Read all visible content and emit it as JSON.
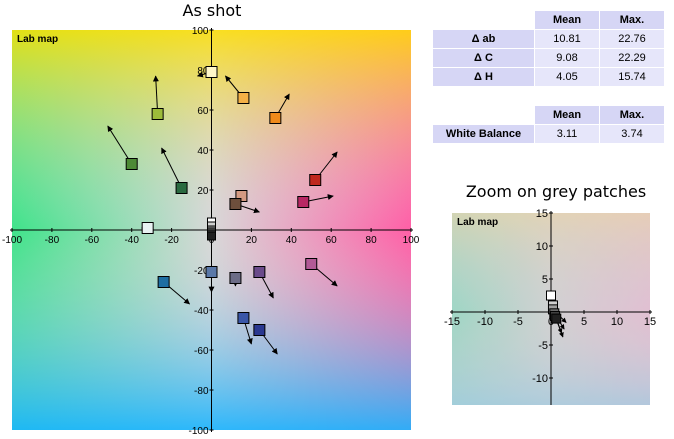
{
  "title": "As shot",
  "zoom_title": "Zoom on grey patches",
  "stats1": {
    "headers": [
      "",
      "Mean",
      "Max."
    ],
    "rows": [
      {
        "label": "Δ ab",
        "mean": "10.81",
        "max": "22.76"
      },
      {
        "label": "Δ C",
        "mean": "9.08",
        "max": "22.29"
      },
      {
        "label": "Δ H",
        "mean": "4.05",
        "max": "15.74"
      }
    ]
  },
  "stats2": {
    "headers": [
      "",
      "Mean",
      "Max."
    ],
    "rows": [
      {
        "label": "White Balance",
        "mean": "3.11",
        "max": "3.74"
      }
    ]
  },
  "chart_data": [
    {
      "type": "scatter",
      "title": "As shot",
      "inner_label": "Lab map",
      "xlim": [
        -100,
        100
      ],
      "ylim": [
        -100,
        100
      ],
      "ticks": [
        -100,
        -80,
        -60,
        -40,
        -20,
        0,
        20,
        40,
        60,
        80,
        100
      ],
      "grid": false,
      "points": [
        {
          "a": 0,
          "b": 79,
          "ta": -7,
          "tb": 77,
          "color": "#fff7c8"
        },
        {
          "a": 16,
          "b": 66,
          "ta": 7,
          "tb": 77,
          "color": "#f3b046"
        },
        {
          "a": 32,
          "b": 56,
          "ta": 39,
          "tb": 68,
          "color": "#ef8a1a"
        },
        {
          "a": -27,
          "b": 58,
          "ta": -28,
          "tb": 77,
          "color": "#9cbc3a"
        },
        {
          "a": -40,
          "b": 33,
          "ta": -52,
          "tb": 52,
          "color": "#4d8a36"
        },
        {
          "a": -15,
          "b": 21,
          "ta": -25,
          "tb": 41,
          "color": "#2a6a40"
        },
        {
          "a": 52,
          "b": 25,
          "ta": 63,
          "tb": 39,
          "color": "#c0281e"
        },
        {
          "a": 46,
          "b": 14,
          "ta": 61,
          "tb": 17,
          "color": "#b82864"
        },
        {
          "a": 15,
          "b": 17,
          "ta": 12,
          "tb": 14,
          "color": "#d49a82"
        },
        {
          "a": 12,
          "b": 13,
          "ta": 24,
          "tb": 9,
          "color": "#6e4f3c"
        },
        {
          "a": -32,
          "b": 1,
          "ta": -35,
          "tb": 1,
          "color": "#e8f2f2"
        },
        {
          "a": 50,
          "b": -17,
          "ta": 63,
          "tb": -28,
          "color": "#b25a96"
        },
        {
          "a": 0,
          "b": -21,
          "ta": 0,
          "tb": -31,
          "color": "#5a78a8"
        },
        {
          "a": 12,
          "b": -24,
          "ta": 12,
          "tb": -28,
          "color": "#6c6c86"
        },
        {
          "a": 24,
          "b": -21,
          "ta": 31,
          "tb": -34,
          "color": "#6a4a8a"
        },
        {
          "a": -24,
          "b": -26,
          "ta": -11,
          "tb": -37,
          "color": "#1e6ea2"
        },
        {
          "a": 16,
          "b": -44,
          "ta": 20,
          "tb": -57,
          "color": "#3a56a8"
        },
        {
          "a": 24,
          "b": -50,
          "ta": 33,
          "tb": -62,
          "color": "#2a3890"
        }
      ],
      "grey_points": [
        {
          "a": 0,
          "b": 4,
          "color": "#ffffff"
        },
        {
          "a": 0,
          "b": 2,
          "color": "#d0d0d0"
        },
        {
          "a": 0,
          "b": 0,
          "color": "#a0a0a0"
        },
        {
          "a": 0,
          "b": -1,
          "color": "#707070"
        },
        {
          "a": 0,
          "b": -2,
          "color": "#404040"
        },
        {
          "a": 0,
          "b": -3,
          "color": "#202020"
        }
      ]
    },
    {
      "type": "scatter",
      "title": "Zoom on grey patches",
      "inner_label": "Lab map",
      "xlim": [
        -15,
        15
      ],
      "ylim": [
        -15,
        15
      ],
      "ticks": [
        -15,
        -10,
        -5,
        0,
        5,
        10,
        15
      ],
      "grid": false,
      "points": [
        {
          "a": 0,
          "b": 2.5,
          "ta": -0.5,
          "tb": 2.0,
          "color": "#ffffff"
        },
        {
          "a": 0.3,
          "b": 1.0,
          "ta": 1.5,
          "tb": -1.0,
          "color": "#d0d0d0"
        },
        {
          "a": 0.3,
          "b": 0.4,
          "ta": 2.3,
          "tb": -1.6,
          "color": "#a0a0a0"
        },
        {
          "a": 0.5,
          "b": -0.2,
          "ta": 2.0,
          "tb": -2.6,
          "color": "#707070"
        },
        {
          "a": 0.6,
          "b": -0.6,
          "ta": 1.6,
          "tb": -3.2,
          "color": "#404040"
        },
        {
          "a": 0.8,
          "b": -1.0,
          "ta": 1.8,
          "tb": -3.8,
          "color": "#202020"
        }
      ]
    }
  ]
}
